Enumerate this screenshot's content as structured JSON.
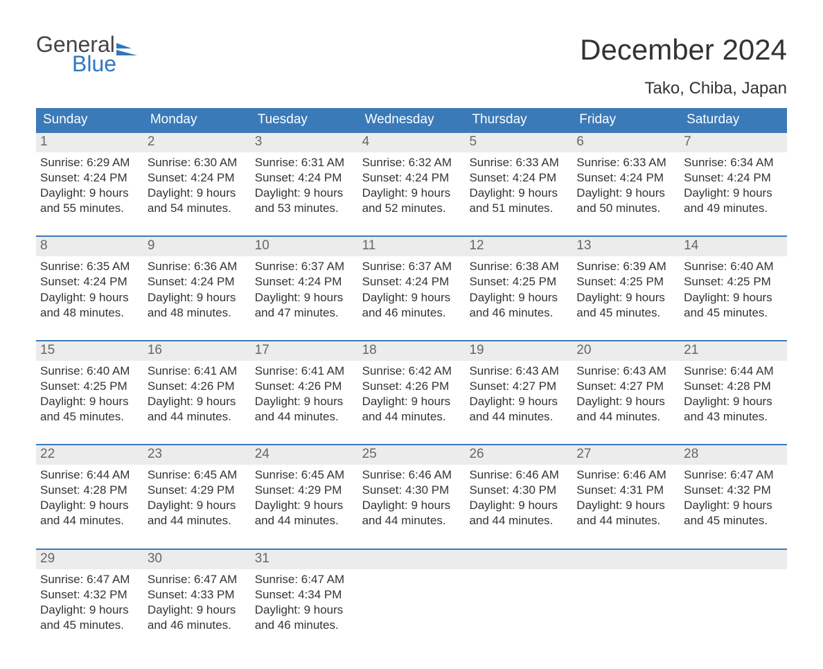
{
  "logo": {
    "word1": "General",
    "word2": "Blue"
  },
  "title": "December 2024",
  "location": "Tako, Chiba, Japan",
  "colors": {
    "header_bg": "#3a7ab8",
    "header_text": "#ffffff",
    "daynum_bg": "#ececec",
    "daynum_text": "#666666",
    "body_text": "#333333",
    "week_border": "#3a7ab8",
    "logo_gray": "#444444",
    "logo_blue": "#2f78bf",
    "page_bg": "#ffffff"
  },
  "day_headers": [
    "Sunday",
    "Monday",
    "Tuesday",
    "Wednesday",
    "Thursday",
    "Friday",
    "Saturday"
  ],
  "font": {
    "family": "Arial",
    "title_size_pt": 32,
    "body_size_pt": 13,
    "header_size_pt": 14
  },
  "weeks": [
    [
      {
        "n": "1",
        "sunrise": "Sunrise: 6:29 AM",
        "sunset": "Sunset: 4:24 PM",
        "d1": "Daylight: 9 hours",
        "d2": "and 55 minutes."
      },
      {
        "n": "2",
        "sunrise": "Sunrise: 6:30 AM",
        "sunset": "Sunset: 4:24 PM",
        "d1": "Daylight: 9 hours",
        "d2": "and 54 minutes."
      },
      {
        "n": "3",
        "sunrise": "Sunrise: 6:31 AM",
        "sunset": "Sunset: 4:24 PM",
        "d1": "Daylight: 9 hours",
        "d2": "and 53 minutes."
      },
      {
        "n": "4",
        "sunrise": "Sunrise: 6:32 AM",
        "sunset": "Sunset: 4:24 PM",
        "d1": "Daylight: 9 hours",
        "d2": "and 52 minutes."
      },
      {
        "n": "5",
        "sunrise": "Sunrise: 6:33 AM",
        "sunset": "Sunset: 4:24 PM",
        "d1": "Daylight: 9 hours",
        "d2": "and 51 minutes."
      },
      {
        "n": "6",
        "sunrise": "Sunrise: 6:33 AM",
        "sunset": "Sunset: 4:24 PM",
        "d1": "Daylight: 9 hours",
        "d2": "and 50 minutes."
      },
      {
        "n": "7",
        "sunrise": "Sunrise: 6:34 AM",
        "sunset": "Sunset: 4:24 PM",
        "d1": "Daylight: 9 hours",
        "d2": "and 49 minutes."
      }
    ],
    [
      {
        "n": "8",
        "sunrise": "Sunrise: 6:35 AM",
        "sunset": "Sunset: 4:24 PM",
        "d1": "Daylight: 9 hours",
        "d2": "and 48 minutes."
      },
      {
        "n": "9",
        "sunrise": "Sunrise: 6:36 AM",
        "sunset": "Sunset: 4:24 PM",
        "d1": "Daylight: 9 hours",
        "d2": "and 48 minutes."
      },
      {
        "n": "10",
        "sunrise": "Sunrise: 6:37 AM",
        "sunset": "Sunset: 4:24 PM",
        "d1": "Daylight: 9 hours",
        "d2": "and 47 minutes."
      },
      {
        "n": "11",
        "sunrise": "Sunrise: 6:37 AM",
        "sunset": "Sunset: 4:24 PM",
        "d1": "Daylight: 9 hours",
        "d2": "and 46 minutes."
      },
      {
        "n": "12",
        "sunrise": "Sunrise: 6:38 AM",
        "sunset": "Sunset: 4:25 PM",
        "d1": "Daylight: 9 hours",
        "d2": "and 46 minutes."
      },
      {
        "n": "13",
        "sunrise": "Sunrise: 6:39 AM",
        "sunset": "Sunset: 4:25 PM",
        "d1": "Daylight: 9 hours",
        "d2": "and 45 minutes."
      },
      {
        "n": "14",
        "sunrise": "Sunrise: 6:40 AM",
        "sunset": "Sunset: 4:25 PM",
        "d1": "Daylight: 9 hours",
        "d2": "and 45 minutes."
      }
    ],
    [
      {
        "n": "15",
        "sunrise": "Sunrise: 6:40 AM",
        "sunset": "Sunset: 4:25 PM",
        "d1": "Daylight: 9 hours",
        "d2": "and 45 minutes."
      },
      {
        "n": "16",
        "sunrise": "Sunrise: 6:41 AM",
        "sunset": "Sunset: 4:26 PM",
        "d1": "Daylight: 9 hours",
        "d2": "and 44 minutes."
      },
      {
        "n": "17",
        "sunrise": "Sunrise: 6:41 AM",
        "sunset": "Sunset: 4:26 PM",
        "d1": "Daylight: 9 hours",
        "d2": "and 44 minutes."
      },
      {
        "n": "18",
        "sunrise": "Sunrise: 6:42 AM",
        "sunset": "Sunset: 4:26 PM",
        "d1": "Daylight: 9 hours",
        "d2": "and 44 minutes."
      },
      {
        "n": "19",
        "sunrise": "Sunrise: 6:43 AM",
        "sunset": "Sunset: 4:27 PM",
        "d1": "Daylight: 9 hours",
        "d2": "and 44 minutes."
      },
      {
        "n": "20",
        "sunrise": "Sunrise: 6:43 AM",
        "sunset": "Sunset: 4:27 PM",
        "d1": "Daylight: 9 hours",
        "d2": "and 44 minutes."
      },
      {
        "n": "21",
        "sunrise": "Sunrise: 6:44 AM",
        "sunset": "Sunset: 4:28 PM",
        "d1": "Daylight: 9 hours",
        "d2": "and 43 minutes."
      }
    ],
    [
      {
        "n": "22",
        "sunrise": "Sunrise: 6:44 AM",
        "sunset": "Sunset: 4:28 PM",
        "d1": "Daylight: 9 hours",
        "d2": "and 44 minutes."
      },
      {
        "n": "23",
        "sunrise": "Sunrise: 6:45 AM",
        "sunset": "Sunset: 4:29 PM",
        "d1": "Daylight: 9 hours",
        "d2": "and 44 minutes."
      },
      {
        "n": "24",
        "sunrise": "Sunrise: 6:45 AM",
        "sunset": "Sunset: 4:29 PM",
        "d1": "Daylight: 9 hours",
        "d2": "and 44 minutes."
      },
      {
        "n": "25",
        "sunrise": "Sunrise: 6:46 AM",
        "sunset": "Sunset: 4:30 PM",
        "d1": "Daylight: 9 hours",
        "d2": "and 44 minutes."
      },
      {
        "n": "26",
        "sunrise": "Sunrise: 6:46 AM",
        "sunset": "Sunset: 4:30 PM",
        "d1": "Daylight: 9 hours",
        "d2": "and 44 minutes."
      },
      {
        "n": "27",
        "sunrise": "Sunrise: 6:46 AM",
        "sunset": "Sunset: 4:31 PM",
        "d1": "Daylight: 9 hours",
        "d2": "and 44 minutes."
      },
      {
        "n": "28",
        "sunrise": "Sunrise: 6:47 AM",
        "sunset": "Sunset: 4:32 PM",
        "d1": "Daylight: 9 hours",
        "d2": "and 45 minutes."
      }
    ],
    [
      {
        "n": "29",
        "sunrise": "Sunrise: 6:47 AM",
        "sunset": "Sunset: 4:32 PM",
        "d1": "Daylight: 9 hours",
        "d2": "and 45 minutes."
      },
      {
        "n": "30",
        "sunrise": "Sunrise: 6:47 AM",
        "sunset": "Sunset: 4:33 PM",
        "d1": "Daylight: 9 hours",
        "d2": "and 46 minutes."
      },
      {
        "n": "31",
        "sunrise": "Sunrise: 6:47 AM",
        "sunset": "Sunset: 4:34 PM",
        "d1": "Daylight: 9 hours",
        "d2": "and 46 minutes."
      },
      {
        "empty": true
      },
      {
        "empty": true
      },
      {
        "empty": true
      },
      {
        "empty": true
      }
    ]
  ]
}
